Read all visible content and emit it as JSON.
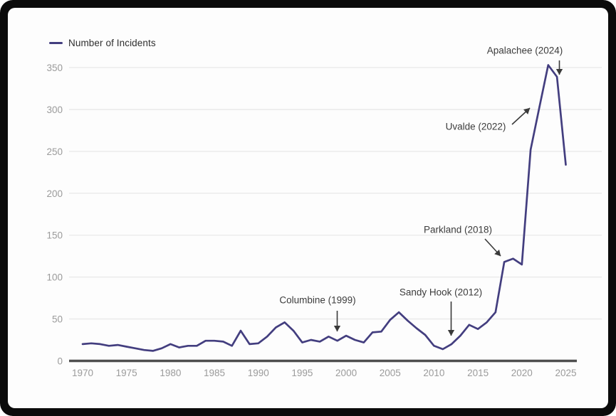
{
  "page": {
    "outer_background": "#ffffff",
    "frame_color": "#0b0b0b",
    "card_background": "#fdfdfd"
  },
  "chart_data": {
    "type": "line",
    "title": "",
    "xlabel": "",
    "ylabel": "",
    "legend_label": "Number of Incidents",
    "legend_position": "top-left",
    "grid": true,
    "xlim": [
      1970,
      2025
    ],
    "ylim": [
      0,
      350
    ],
    "x_ticks": [
      1970,
      1975,
      1980,
      1985,
      1990,
      1995,
      2000,
      2005,
      2010,
      2015,
      2020,
      2025
    ],
    "y_ticks": [
      0,
      50,
      100,
      150,
      200,
      250,
      300,
      350
    ],
    "x": [
      1970,
      1971,
      1972,
      1973,
      1974,
      1975,
      1976,
      1977,
      1978,
      1979,
      1980,
      1981,
      1982,
      1983,
      1984,
      1985,
      1986,
      1987,
      1988,
      1989,
      1990,
      1991,
      1992,
      1993,
      1994,
      1995,
      1996,
      1997,
      1998,
      1999,
      2000,
      2001,
      2002,
      2003,
      2004,
      2005,
      2006,
      2007,
      2008,
      2009,
      2010,
      2011,
      2012,
      2013,
      2014,
      2015,
      2016,
      2017,
      2018,
      2019,
      2020,
      2021,
      2022,
      2023,
      2024,
      2025
    ],
    "series": [
      {
        "name": "Number of Incidents",
        "color": "#433e7f",
        "values": [
          20,
          21,
          20,
          18,
          19,
          17,
          15,
          13,
          12,
          15,
          20,
          16,
          18,
          18,
          24,
          24,
          23,
          18,
          36,
          20,
          21,
          29,
          40,
          46,
          36,
          22,
          25,
          23,
          29,
          24,
          30,
          25,
          22,
          34,
          35,
          49,
          58,
          48,
          39,
          31,
          18,
          14,
          20,
          30,
          43,
          38,
          46,
          58,
          118,
          122,
          115,
          252,
          303,
          353,
          339,
          234
        ]
      }
    ],
    "annotations": [
      {
        "id": "columbine",
        "label": "Columbine (1999)",
        "year": 1999,
        "value": 24
      },
      {
        "id": "sandy-hook",
        "label": "Sandy Hook (2012)",
        "year": 2012,
        "value": 20
      },
      {
        "id": "parkland",
        "label": "Parkland (2018)",
        "year": 2018,
        "value": 118
      },
      {
        "id": "uvalde",
        "label": "Uvalde (2022)",
        "year": 2022,
        "value": 303
      },
      {
        "id": "apalachee",
        "label": "Apalachee (2024)",
        "year": 2024,
        "value": 339
      }
    ]
  },
  "colors": {
    "line": "#433e7f",
    "gridline": "#e8e8e8",
    "axis_line": "#4f4f4f",
    "tick_label": "#9b9b9b",
    "annotation_text": "#3c3c3c",
    "arrow": "#3a3a3a",
    "legend_text": "#2e2e2e"
  }
}
